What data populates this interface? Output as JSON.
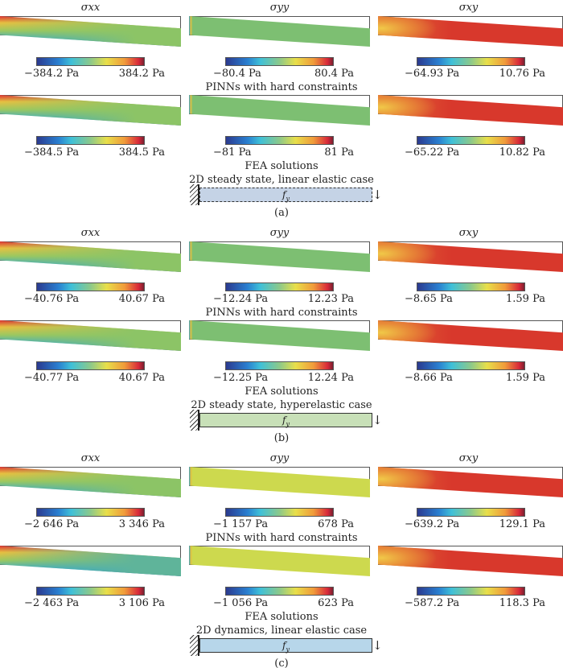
{
  "sections": [
    {
      "label": "(a)",
      "diagram_title": "2D steady state, linear elastic case",
      "load": "f_y",
      "beam_color": "#c5d3e6",
      "beam_dashed": true,
      "rows": [
        {
          "caption": "PINNs with hard constraints",
          "ranges": [
            [
              "−384.2 Pa",
              "384.2 Pa"
            ],
            [
              "−80.4 Pa",
              "80.4 Pa"
            ],
            [
              "−64.93 Pa",
              "10.76 Pa"
            ]
          ]
        },
        {
          "caption": "FEA solutions",
          "ranges": [
            [
              "−384.5 Pa",
              "384.5 Pa"
            ],
            [
              "−81 Pa",
              "81 Pa"
            ],
            [
              "−65.22 Pa",
              "10.82 Pa"
            ]
          ]
        }
      ],
      "yy_color": "#7dbf72"
    },
    {
      "label": "(b)",
      "diagram_title": "2D steady state, hyperelastic case",
      "load": "f_y",
      "beam_color": "#c8e0b8",
      "beam_dashed": false,
      "rows": [
        {
          "caption": "PINNs with hard constraints",
          "ranges": [
            [
              "−40.76 Pa",
              "40.67 Pa"
            ],
            [
              "−12.24 Pa",
              "12.23 Pa"
            ],
            [
              "−8.65 Pa",
              "1.59 Pa"
            ]
          ]
        },
        {
          "caption": "FEA solutions",
          "ranges": [
            [
              "−40.77 Pa",
              "40.67 Pa"
            ],
            [
              "−12.25 Pa",
              "12.24 Pa"
            ],
            [
              "−8.66 Pa",
              "1.59 Pa"
            ]
          ]
        }
      ],
      "yy_color": "#7dbf72"
    },
    {
      "label": "(c)",
      "diagram_title": "2D dynamics, linear elastic case",
      "load": "f_y",
      "beam_color": "#b7d6ea",
      "beam_dashed": false,
      "rows": [
        {
          "caption": "PINNs with hard constraints",
          "ranges": [
            [
              "−2 646 Pa",
              "3 346 Pa"
            ],
            [
              "−1 157 Pa",
              "678 Pa"
            ],
            [
              "−639.2 Pa",
              "129.1 Pa"
            ]
          ]
        },
        {
          "caption": "FEA solutions",
          "ranges": [
            [
              "−2 463 Pa",
              "3 106 Pa"
            ],
            [
              "−1 056 Pa",
              "623 Pa"
            ],
            [
              "−587.2 Pa",
              "118.3 Pa"
            ]
          ]
        }
      ],
      "yy_color": "#cdd94e"
    }
  ],
  "column_titles": [
    "σxx",
    "σyy",
    "σxy"
  ]
}
